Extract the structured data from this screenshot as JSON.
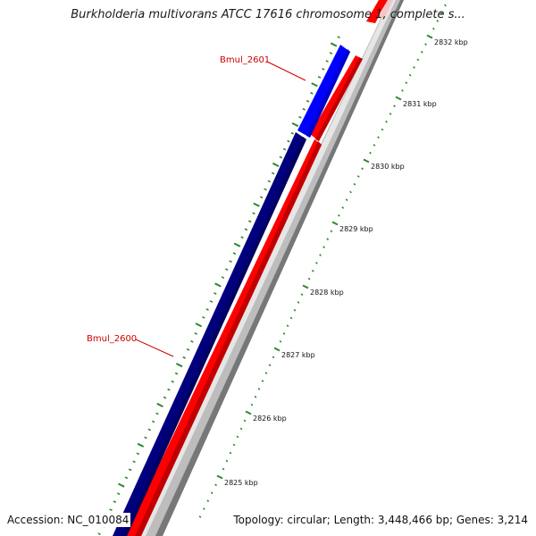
{
  "title": "Burkholderia multivorans ATCC 17616 chromosome 1, complete s...",
  "accession": "Accession: NC_010084",
  "topology": "Topology: circular; Length: 3,448,466 bp; Genes: 3,214",
  "colors": {
    "backbone": "#c0c0c0",
    "backbone_shadow": "#7a7a7a",
    "reverse_gene": "#00007f",
    "reverse_gene_highlight": "#0000ff",
    "forward_gene": "#ff0000",
    "tick": "#2a8a2a",
    "label": "#cc0000"
  },
  "scale_labels": [
    "2825 kbp",
    "2826 kbp",
    "2827 kbp",
    "2828 kbp",
    "2829 kbp",
    "2830 kbp",
    "2831 kbp",
    "2832 kbp"
  ],
  "gene_labels": [
    {
      "name": "Bmul_2601"
    },
    {
      "name": "Bmul_2600"
    }
  ]
}
